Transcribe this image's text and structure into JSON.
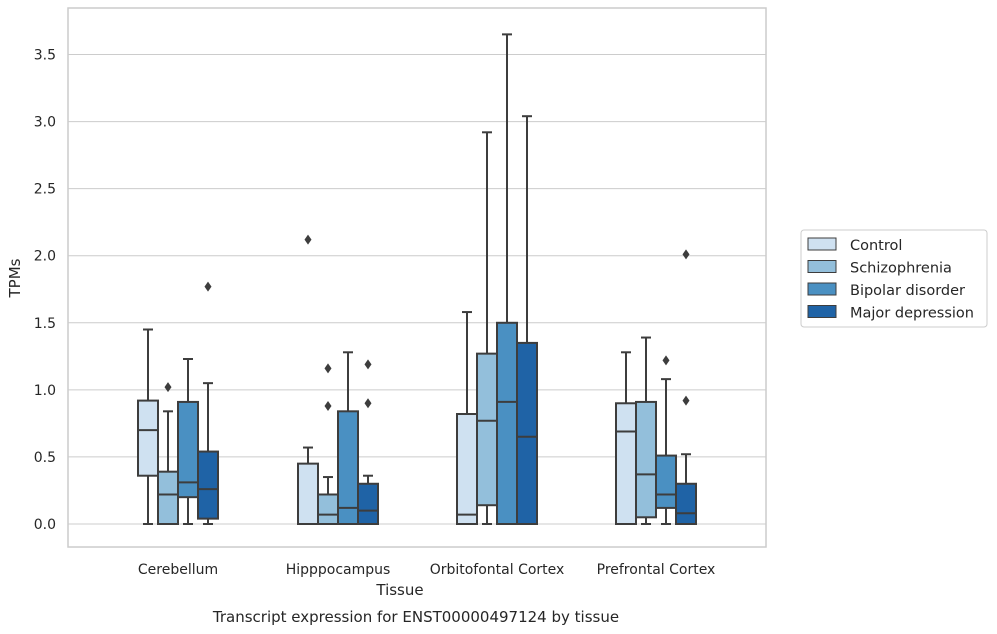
{
  "chart_data": {
    "type": "box",
    "title": "",
    "caption": "Transcript expression for ENST00000497124 by tissue",
    "xlabel": "Tissue",
    "ylabel": "TPMs",
    "ylim": [
      -0.18,
      3.86
    ],
    "yticks": [
      0.0,
      0.5,
      1.0,
      1.5,
      2.0,
      2.5,
      3.0,
      3.5
    ],
    "ytick_labels": [
      "0.0",
      "0.5",
      "1.0",
      "1.5",
      "2.0",
      "2.5",
      "3.0",
      "3.5"
    ],
    "grid": "y",
    "legend_position": "right",
    "categories": [
      "Cerebellum",
      "Hipppocampus",
      "Orbitofontal Cortex",
      "Prefrontal Cortex"
    ],
    "series": [
      {
        "name": "Control",
        "color": "#cfe1f1",
        "boxes": [
          {
            "whislo": 0.0,
            "q1": 0.36,
            "med": 0.7,
            "q3": 0.92,
            "whishi": 1.45,
            "fliers": []
          },
          {
            "whislo": 0.0,
            "q1": 0.0,
            "med": 0.0,
            "q3": 0.45,
            "whishi": 0.57,
            "fliers": [
              2.12
            ]
          },
          {
            "whislo": 0.0,
            "q1": 0.0,
            "med": 0.07,
            "q3": 0.82,
            "whishi": 1.58,
            "fliers": []
          },
          {
            "whislo": 0.0,
            "q1": 0.0,
            "med": 0.69,
            "q3": 0.9,
            "whishi": 1.28,
            "fliers": []
          }
        ]
      },
      {
        "name": "Schizophrenia",
        "color": "#93bfdb",
        "boxes": [
          {
            "whislo": 0.0,
            "q1": 0.0,
            "med": 0.22,
            "q3": 0.39,
            "whishi": 0.84,
            "fliers": [
              1.02
            ]
          },
          {
            "whislo": 0.0,
            "q1": 0.0,
            "med": 0.07,
            "q3": 0.22,
            "whishi": 0.35,
            "fliers": [
              0.88,
              1.16
            ]
          },
          {
            "whislo": 0.0,
            "q1": 0.14,
            "med": 0.77,
            "q3": 1.27,
            "whishi": 2.92,
            "fliers": []
          },
          {
            "whislo": 0.0,
            "q1": 0.05,
            "med": 0.37,
            "q3": 0.91,
            "whishi": 1.39,
            "fliers": []
          }
        ]
      },
      {
        "name": "Bipolar disorder",
        "color": "#4a90c2",
        "boxes": [
          {
            "whislo": 0.0,
            "q1": 0.2,
            "med": 0.31,
            "q3": 0.91,
            "whishi": 1.23,
            "fliers": []
          },
          {
            "whislo": 0.0,
            "q1": 0.0,
            "med": 0.12,
            "q3": 0.84,
            "whishi": 1.28,
            "fliers": []
          },
          {
            "whislo": 0.0,
            "q1": 0.0,
            "med": 0.91,
            "q3": 1.5,
            "whishi": 3.65,
            "fliers": []
          },
          {
            "whislo": 0.0,
            "q1": 0.12,
            "med": 0.22,
            "q3": 0.51,
            "whishi": 1.08,
            "fliers": [
              1.22
            ]
          }
        ]
      },
      {
        "name": "Major depression",
        "color": "#1f63a6",
        "boxes": [
          {
            "whislo": 0.0,
            "q1": 0.04,
            "med": 0.26,
            "q3": 0.54,
            "whishi": 1.05,
            "fliers": [
              1.77
            ]
          },
          {
            "whislo": 0.0,
            "q1": 0.0,
            "med": 0.1,
            "q3": 0.3,
            "whishi": 0.36,
            "fliers": [
              0.9,
              1.19
            ]
          },
          {
            "whislo": 0.0,
            "q1": 0.0,
            "med": 0.65,
            "q3": 1.35,
            "whishi": 3.04,
            "fliers": []
          },
          {
            "whislo": 0.0,
            "q1": 0.0,
            "med": 0.08,
            "q3": 0.3,
            "whishi": 0.52,
            "fliers": [
              0.92,
              2.01
            ]
          }
        ]
      }
    ]
  },
  "colors": {
    "box_edge": "#3d3d3d",
    "grid": "#cccccc",
    "axes_edge": "#cccccc"
  }
}
